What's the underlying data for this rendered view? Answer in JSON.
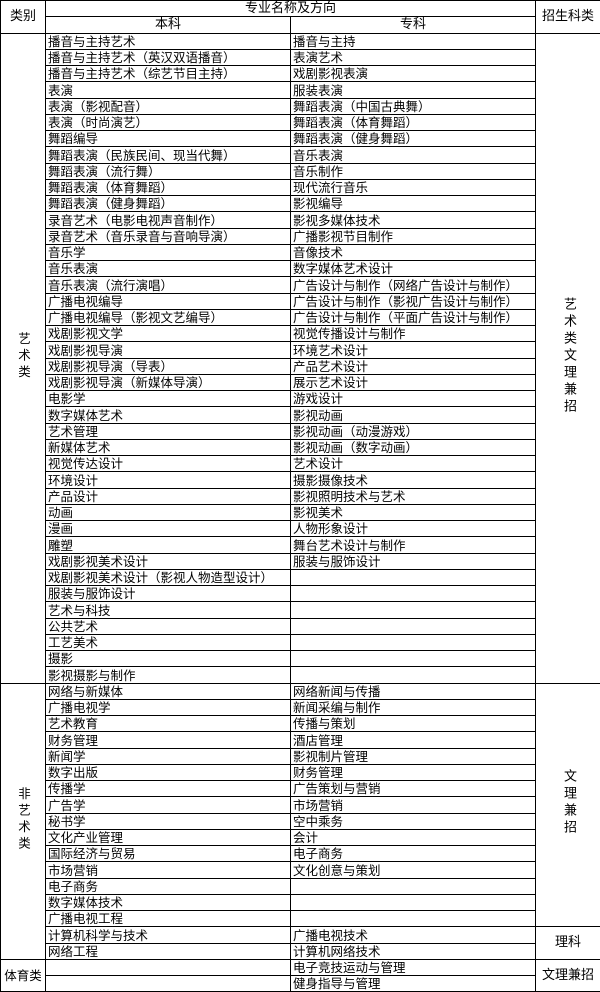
{
  "header": {
    "category": "类别",
    "major_group": "专业名称及方向",
    "undergrad": "本科",
    "college": "专科",
    "enroll_type": "招生科类"
  },
  "sections": [
    {
      "category": "艺术类",
      "rows": [
        [
          "播音与主持艺术",
          "播音与主持"
        ],
        [
          "播音与主持艺术（英汉双语播音）",
          "表演艺术"
        ],
        [
          "播音与主持艺术（综艺节目主持）",
          "戏剧影视表演"
        ],
        [
          "表演",
          "服装表演"
        ],
        [
          "表演（影视配音）",
          "舞蹈表演（中国古典舞）"
        ],
        [
          "表演（时尚演艺）",
          "舞蹈表演（体育舞蹈）"
        ],
        [
          "舞蹈编导",
          "舞蹈表演（健身舞蹈）"
        ],
        [
          "舞蹈表演（民族民间、现当代舞）",
          "音乐表演"
        ],
        [
          "舞蹈表演（流行舞）",
          "音乐制作"
        ],
        [
          "舞蹈表演（体育舞蹈）",
          "现代流行音乐"
        ],
        [
          "舞蹈表演（健身舞蹈）",
          "影视编导"
        ],
        [
          "录音艺术（电影电视声音制作）",
          "影视多媒体技术"
        ],
        [
          "录音艺术（音乐录音与音响导演）",
          "广播影视节目制作"
        ],
        [
          "音乐学",
          "音像技术"
        ],
        [
          "音乐表演",
          "数字媒体艺术设计"
        ],
        [
          "音乐表演（流行演唱）",
          "广告设计与制作（网络广告设计与制作）"
        ],
        [
          "广播电视编导",
          "广告设计与制作（影视广告设计与制作）"
        ],
        [
          "广播电视编导（影视文艺编导）",
          "广告设计与制作（平面广告设计与制作）"
        ],
        [
          "戏剧影视文学",
          "视觉传播设计与制作"
        ],
        [
          "戏剧影视导演",
          "环境艺术设计"
        ],
        [
          "戏剧影视导演（导表）",
          "产品艺术设计"
        ],
        [
          "戏剧影视导演（新媒体导演）",
          "展示艺术设计"
        ],
        [
          "电影学",
          "游戏设计"
        ],
        [
          "数字媒体艺术",
          "影视动画"
        ],
        [
          "艺术管理",
          "影视动画（动漫游戏）"
        ],
        [
          "新媒体艺术",
          "影视动画（数字动画）"
        ],
        [
          "视觉传达设计",
          "艺术设计"
        ],
        [
          "环境设计",
          "摄影摄像技术"
        ],
        [
          "产品设计",
          "影视照明技术与艺术"
        ],
        [
          "动画",
          "影视美术"
        ],
        [
          "漫画",
          "人物形象设计"
        ],
        [
          "雕塑",
          "舞台艺术设计与制作"
        ],
        [
          "戏剧影视美术设计",
          "服装与服饰设计"
        ],
        [
          "戏剧影视美术设计（影视人物造型设计）",
          ""
        ],
        [
          "服装与服饰设计",
          ""
        ],
        [
          "艺术与科技",
          ""
        ],
        [
          "公共艺术",
          ""
        ],
        [
          "工艺美术",
          ""
        ],
        [
          "摄影",
          ""
        ],
        [
          "影视摄影与制作",
          ""
        ]
      ],
      "enroll": [
        {
          "label": "艺术类文理兼招",
          "span": 40,
          "vertical": true
        }
      ]
    },
    {
      "category": "非艺术类",
      "rows": [
        [
          "网络与新媒体",
          "网络新闻与传播"
        ],
        [
          "广播电视学",
          "新闻采编与制作"
        ],
        [
          "艺术教育",
          "传播与策划"
        ],
        [
          "财务管理",
          "酒店管理"
        ],
        [
          "新闻学",
          "影视制片管理"
        ],
        [
          "数字出版",
          "财务管理"
        ],
        [
          "传播学",
          "广告策划与营销"
        ],
        [
          "广告学",
          "市场营销"
        ],
        [
          "秘书学",
          "空中乘务"
        ],
        [
          "文化产业管理",
          "会计"
        ],
        [
          "国际经济与贸易",
          "电子商务"
        ],
        [
          "市场营销",
          "文化创意与策划"
        ],
        [
          "电子商务",
          ""
        ],
        [
          "数字媒体技术",
          ""
        ],
        [
          "广播电视工程",
          ""
        ],
        [
          "计算机科学与技术",
          "广播电视技术"
        ],
        [
          "网络工程",
          "计算机网络技术"
        ]
      ],
      "enroll": [
        {
          "label": "文理兼招",
          "span": 15,
          "vertical": true
        },
        {
          "label": "理科",
          "span": 2,
          "vertical": false
        }
      ]
    },
    {
      "category": "体育类",
      "rows": [
        [
          "",
          "电子竞技运动与管理"
        ],
        [
          "",
          "健身指导与管理"
        ]
      ],
      "enroll": [
        {
          "label": "文理兼招",
          "span": 2,
          "vertical": false
        }
      ]
    }
  ]
}
